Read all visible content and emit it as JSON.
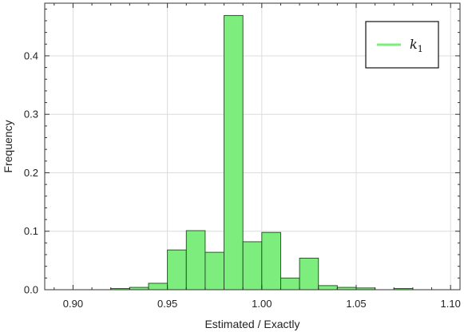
{
  "chart_data": {
    "type": "bar",
    "title": "",
    "xlabel": "Estimated / Exactly",
    "ylabel": "Frequency",
    "xlim": [
      0.885,
      1.105
    ],
    "ylim": [
      0,
      0.49
    ],
    "xticks": [
      0.9,
      0.95,
      1.0,
      1.05,
      1.1
    ],
    "xtick_labels": [
      "0.90",
      "0.95",
      "1.00",
      "1.05",
      "1.10"
    ],
    "yticks": [
      0.0,
      0.1,
      0.2,
      0.3,
      0.4
    ],
    "ytick_labels": [
      "0.0",
      "0.1",
      "0.2",
      "0.3",
      "0.4"
    ],
    "grid": true,
    "legend_position": "top-right",
    "bin_width": 0.01,
    "bin_edges": [
      0.92,
      0.93,
      0.94,
      0.95,
      0.96,
      0.97,
      0.98,
      0.99,
      1.0,
      1.01,
      1.02,
      1.03,
      1.04,
      1.05,
      1.06,
      1.07,
      1.08
    ],
    "series": [
      {
        "name": "k₁",
        "name_base": "k",
        "name_sub": "1",
        "color": "#7ded7d",
        "edge_color": "#1a4d1a",
        "values": [
          0.002,
          0.004,
          0.011,
          0.068,
          0.101,
          0.064,
          0.469,
          0.082,
          0.098,
          0.02,
          0.054,
          0.007,
          0.004,
          0.003,
          0.0,
          0.002
        ]
      }
    ]
  }
}
